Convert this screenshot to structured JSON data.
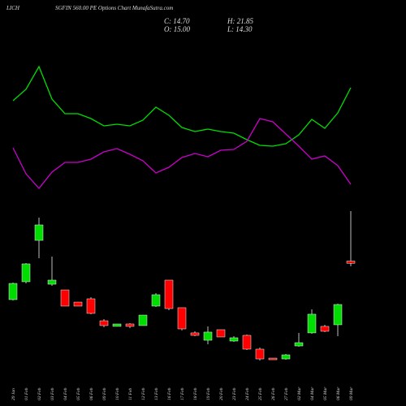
{
  "chart_data": {
    "type": "candlestick",
    "title": "LICH",
    "subtitle": "SGFIN 560.00 PE Options Chart MunafaSutra.com",
    "header_stats": [
      "C: 14.70",
      "H: 21.85",
      "O: 15.00",
      "L: 14.30"
    ],
    "categories": [
      "29 Jan",
      "01 Feb",
      "02 Feb",
      "03 Feb",
      "04 Feb",
      "05 Feb",
      "06 Feb",
      "09 Feb",
      "10 Feb",
      "11 Feb",
      "12 Feb",
      "13 Feb",
      "16 Feb",
      "17 Feb",
      "18 Feb",
      "19 Feb",
      "20 Feb",
      "23 Feb",
      "24 Feb",
      "25 Feb",
      "26 Feb",
      "27 Feb",
      "02 Mar",
      "04 Mar",
      "05 Mar",
      "06 Mar",
      "09 Mar"
    ],
    "open": [
      9.72,
      12.17,
      17.84,
      11.83,
      11.05,
      9.38,
      9.83,
      6.82,
      6.05,
      6.38,
      6.16,
      8.83,
      12.39,
      8.61,
      5.16,
      4.15,
      5.6,
      4.04,
      4.82,
      2.93,
      1.7,
      1.59,
      3.37,
      5.16,
      6.05,
      6.27,
      15.0
    ],
    "high": [
      12.06,
      14.73,
      20.96,
      15.62,
      11.05,
      9.38,
      10.05,
      7.05,
      6.38,
      6.49,
      7.6,
      10.61,
      12.39,
      8.61,
      5.38,
      6.05,
      5.6,
      4.71,
      4.93,
      3.15,
      1.7,
      2.26,
      5.16,
      8.38,
      6.27,
      9.16,
      21.85
    ],
    "low": [
      9.61,
      11.94,
      15.39,
      11.61,
      8.83,
      8.83,
      7.72,
      5.93,
      6.05,
      5.82,
      6.16,
      8.72,
      8.27,
      5.49,
      4.71,
      3.6,
      4.6,
      3.93,
      2.82,
      1.37,
      1.48,
      1.48,
      3.26,
      5.05,
      5.27,
      4.71,
      14.3
    ],
    "close": [
      11.94,
      14.62,
      19.96,
      12.39,
      8.83,
      8.83,
      7.83,
      6.16,
      6.38,
      6.05,
      7.6,
      10.39,
      8.49,
      5.71,
      4.82,
      5.27,
      4.6,
      4.49,
      2.93,
      1.59,
      1.48,
      2.15,
      3.82,
      7.72,
      5.38,
      9.05,
      14.7
    ],
    "up_color": "#00dd00",
    "down_color": "#ff0000",
    "lines": [
      {
        "color": "#00dd00",
        "values": [
          176,
          190,
          218,
          178,
          160,
          160,
          154,
          145,
          147,
          145,
          152,
          168,
          158,
          143,
          138,
          141,
          138,
          136,
          128,
          121,
          120,
          123,
          134,
          153,
          142,
          161,
          192
        ]
      },
      {
        "color": "#cc00cc",
        "values": [
          118,
          86,
          68,
          88,
          100,
          100,
          104,
          113,
          117,
          110,
          102,
          87,
          94,
          106,
          111,
          107,
          115,
          116,
          126,
          154,
          150,
          135,
          120,
          104,
          108,
          96,
          73
        ]
      }
    ]
  }
}
